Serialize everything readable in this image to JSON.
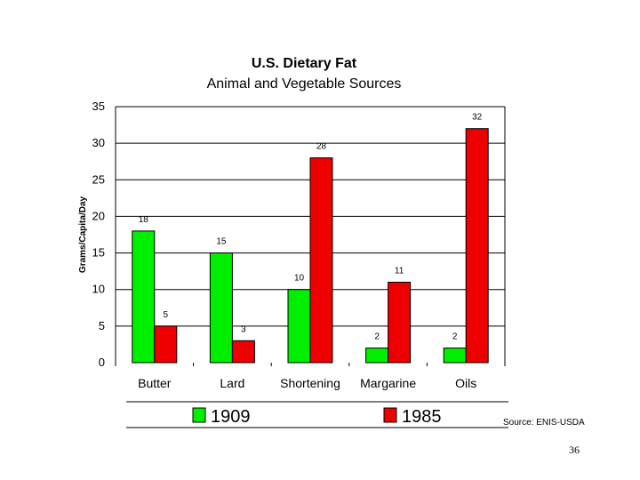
{
  "chart_data": {
    "type": "bar",
    "title": "U.S. Dietary Fat",
    "subtitle": "Animal and Vegetable Sources",
    "ylabel": "Grams/Capita/Day",
    "xlabel": "",
    "categories": [
      "Butter",
      "Lard",
      "Shortening",
      "Margarine",
      "Oils"
    ],
    "series": [
      {
        "name": "1909",
        "color": "#00ee00",
        "values": [
          18,
          15,
          10,
          2,
          2
        ],
        "labels": [
          "18",
          "15",
          "10",
          "2",
          "2"
        ]
      },
      {
        "name": "1985",
        "color": "#ee0000",
        "values": [
          5,
          3,
          28,
          11,
          32
        ],
        "labels": [
          "5",
          "3",
          "28",
          "11",
          "32"
        ]
      }
    ],
    "yticks": [
      "0",
      "5",
      "10",
      "15",
      "20",
      "25",
      "30",
      "35"
    ],
    "ylim": [
      0,
      35
    ],
    "grid": true,
    "legend_position": "bottom",
    "source": "Source: ENIS-USDA"
  },
  "page_number": "36"
}
